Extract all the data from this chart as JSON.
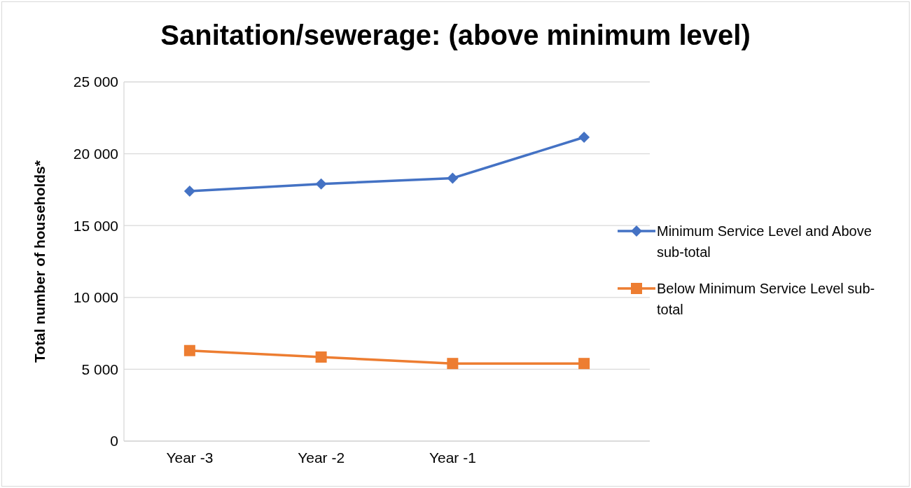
{
  "chart_data": {
    "type": "line",
    "title": "Sanitation/sewerage: (above minimum level)",
    "ylabel": "Total number of households*",
    "categories": [
      "Year -3",
      "Year -2",
      "Year -1",
      null
    ],
    "series": [
      {
        "name": "Minimum Service Level and Above sub-total",
        "color": "#4472c4",
        "marker": "diamond",
        "values": [
          17400,
          17900,
          18300,
          21150
        ]
      },
      {
        "name": "Below Minimum Service Level sub-total",
        "color": "#ed7d31",
        "marker": "square",
        "values": [
          6300,
          5850,
          5400,
          5400
        ]
      }
    ],
    "ylim": [
      0,
      25000
    ],
    "yticks": [
      {
        "value": 0,
        "label": "0"
      },
      {
        "value": 5000,
        "label": "5 000"
      },
      {
        "value": 10000,
        "label": "10 000"
      },
      {
        "value": 15000,
        "label": "15 000"
      },
      {
        "value": 20000,
        "label": "20 000"
      },
      {
        "value": 25000,
        "label": "25 000"
      }
    ],
    "grid": "y",
    "legend": "right",
    "line_style": "solid"
  }
}
